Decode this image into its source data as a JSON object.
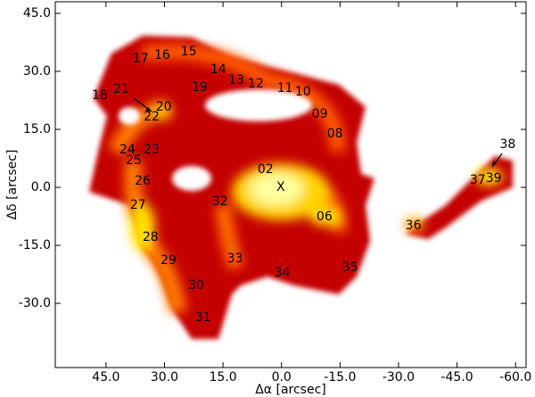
{
  "chart_data": {
    "type": "image-map",
    "xlabel": "Δα [arcsec]",
    "ylabel": "Δδ [arcsec]",
    "xlim": [
      58,
      -62.7
    ],
    "ylim": [
      -46.6,
      48
    ],
    "xticks": [
      {
        "value": 45,
        "label": "45.0"
      },
      {
        "value": 30,
        "label": "30.0"
      },
      {
        "value": 15,
        "label": "15.0"
      },
      {
        "value": 0,
        "label": "0.0"
      },
      {
        "value": -15,
        "label": "-15.0"
      },
      {
        "value": -30,
        "label": "-30.0"
      },
      {
        "value": -45,
        "label": "-45.0"
      },
      {
        "value": -60,
        "label": "-60.0"
      }
    ],
    "yticks": [
      {
        "value": -30,
        "label": "-30.0"
      },
      {
        "value": -15,
        "label": "-15.0"
      },
      {
        "value": 0,
        "label": "0.0"
      },
      {
        "value": 15,
        "label": "15.0"
      },
      {
        "value": 30,
        "label": "30.0"
      },
      {
        "value": 45,
        "label": "45.0"
      }
    ],
    "annotations": [
      {
        "text": "17",
        "x": 36.1,
        "y": 33.2
      },
      {
        "text": "16",
        "x": 30.6,
        "y": 34.2
      },
      {
        "text": "15",
        "x": 23.8,
        "y": 35.1
      },
      {
        "text": "14",
        "x": 16.2,
        "y": 30.5
      },
      {
        "text": "13",
        "x": 11.6,
        "y": 27.7
      },
      {
        "text": "12",
        "x": 6.6,
        "y": 26.8
      },
      {
        "text": "11",
        "x": -0.9,
        "y": 25.6
      },
      {
        "text": "10",
        "x": -5.5,
        "y": 24.7
      },
      {
        "text": "19",
        "x": 21.0,
        "y": 25.8
      },
      {
        "text": "18",
        "x": 46.6,
        "y": 23.8
      },
      {
        "text": "21",
        "x": 41.1,
        "y": 25.4
      },
      {
        "text": "20",
        "x": 30.2,
        "y": 20.8
      },
      {
        "text": "22",
        "x": 33.3,
        "y": 18.2
      },
      {
        "text": "09",
        "x": -9.8,
        "y": 18.9
      },
      {
        "text": "08",
        "x": -13.7,
        "y": 13.8
      },
      {
        "text": "24",
        "x": 39.5,
        "y": 9.7
      },
      {
        "text": "23",
        "x": 33.3,
        "y": 9.7
      },
      {
        "text": "25",
        "x": 37.9,
        "y": 6.9
      },
      {
        "text": "02",
        "x": 4.1,
        "y": 4.6
      },
      {
        "text": "X",
        "x": 0.2,
        "y": 0
      },
      {
        "text": "26",
        "x": 35.6,
        "y": 1.6
      },
      {
        "text": "32",
        "x": 15.8,
        "y": -3.7
      },
      {
        "text": "27",
        "x": 36.8,
        "y": -4.6
      },
      {
        "text": "06",
        "x": -11.0,
        "y": -7.6
      },
      {
        "text": "36",
        "x": -33.8,
        "y": -9.9
      },
      {
        "text": "28",
        "x": 33.6,
        "y": -12.9
      },
      {
        "text": "29",
        "x": 29.0,
        "y": -18.9
      },
      {
        "text": "33",
        "x": 11.9,
        "y": -18.5
      },
      {
        "text": "34",
        "x": -0.2,
        "y": -22.2
      },
      {
        "text": "35",
        "x": -17.6,
        "y": -20.8
      },
      {
        "text": "30",
        "x": 21.9,
        "y": -25.4
      },
      {
        "text": "31",
        "x": 20.1,
        "y": -33.7
      },
      {
        "text": "38",
        "x": -58.0,
        "y": 11.1
      },
      {
        "text": "37",
        "x": -50.3,
        "y": 1.8
      },
      {
        "text": "39",
        "x": -54.4,
        "y": 2.3
      }
    ]
  }
}
